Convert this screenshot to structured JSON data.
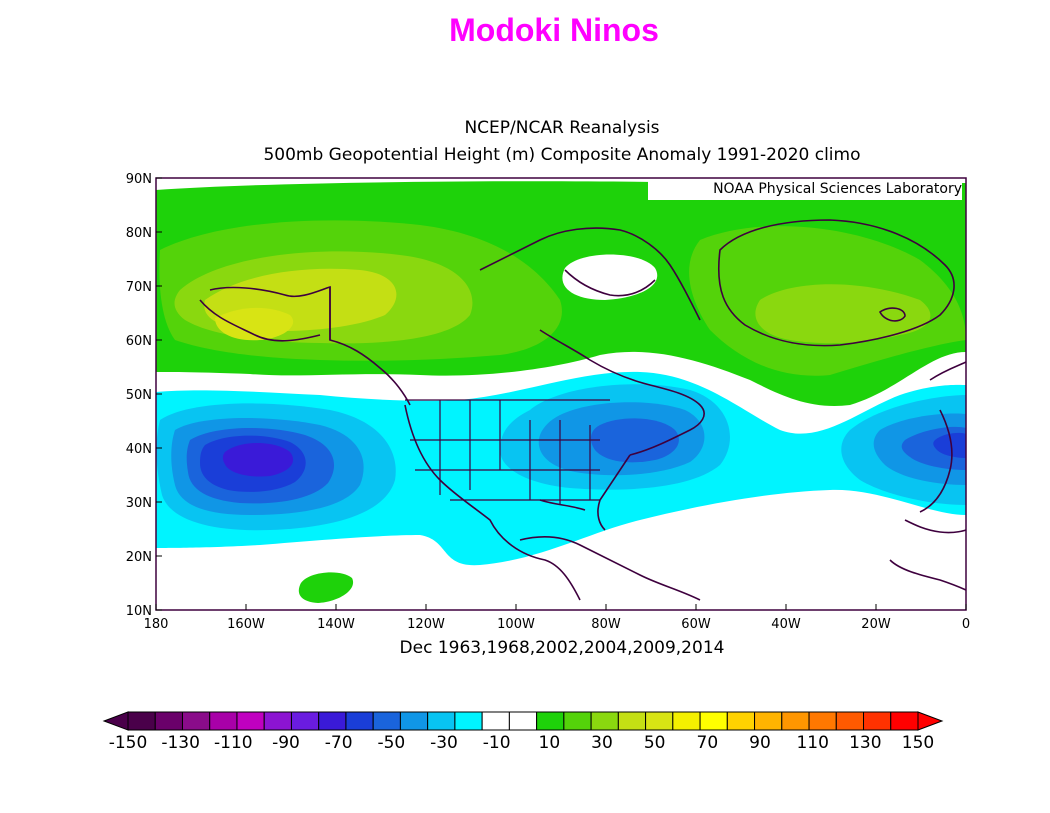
{
  "title": "Modoki Ninos",
  "subtitle_1": "NCEP/NCAR Reanalysis",
  "subtitle_2": "500mb Geopotential Height (m) Composite Anomaly 1991-2020 climo",
  "credit": "NOAA Physical Sciences Laboratory",
  "caption": "Dec 1963,1968,2002,2004,2009,2014",
  "colors": {
    "title": "#ff00ff",
    "positive_light": "#54d30a",
    "positive_mid": "#8ad80f",
    "positive_strong": "#c4df14",
    "negative_light": "#00f4ff",
    "negative_mid": "#08c4f2",
    "negative_strong": "#1096e6",
    "negative_stronger": "#1a64dc",
    "negative_core": "#3a1ad8",
    "coast": "#3e003e"
  },
  "chart_data": {
    "type": "heatmap",
    "xlabel": "",
    "ylabel": "",
    "x_ticks": [
      "180",
      "160W",
      "140W",
      "120W",
      "100W",
      "80W",
      "60W",
      "40W",
      "20W",
      "0"
    ],
    "y_ticks": [
      "90N",
      "80N",
      "70N",
      "60N",
      "50N",
      "40N",
      "30N",
      "20N",
      "10N"
    ],
    "x_range_deg": [
      -180,
      0
    ],
    "y_range_deg": [
      10,
      90
    ],
    "colorbar": {
      "labels": [
        "-150",
        "-130",
        "-110",
        "-90",
        "-70",
        "-50",
        "-30",
        "-10",
        "10",
        "30",
        "50",
        "70",
        "90",
        "110",
        "130",
        "150"
      ],
      "colors": [
        "#4a004a",
        "#6a006a",
        "#8a0c8a",
        "#a800a8",
        "#c000c0",
        "#8c14d2",
        "#6a1ce0",
        "#3a1ad8",
        "#1a3ed8",
        "#1a64dc",
        "#1096e6",
        "#08c4f2",
        "#00f4ff",
        "#ffffff",
        "#ffffff",
        "#1ed20a",
        "#54d30a",
        "#8ad80f",
        "#c4df14",
        "#d8e414",
        "#f4f000",
        "#ffff00",
        "#ffd200",
        "#ffb400",
        "#ff9600",
        "#ff7800",
        "#ff5a00",
        "#ff3200",
        "#ff0000"
      ]
    }
  }
}
